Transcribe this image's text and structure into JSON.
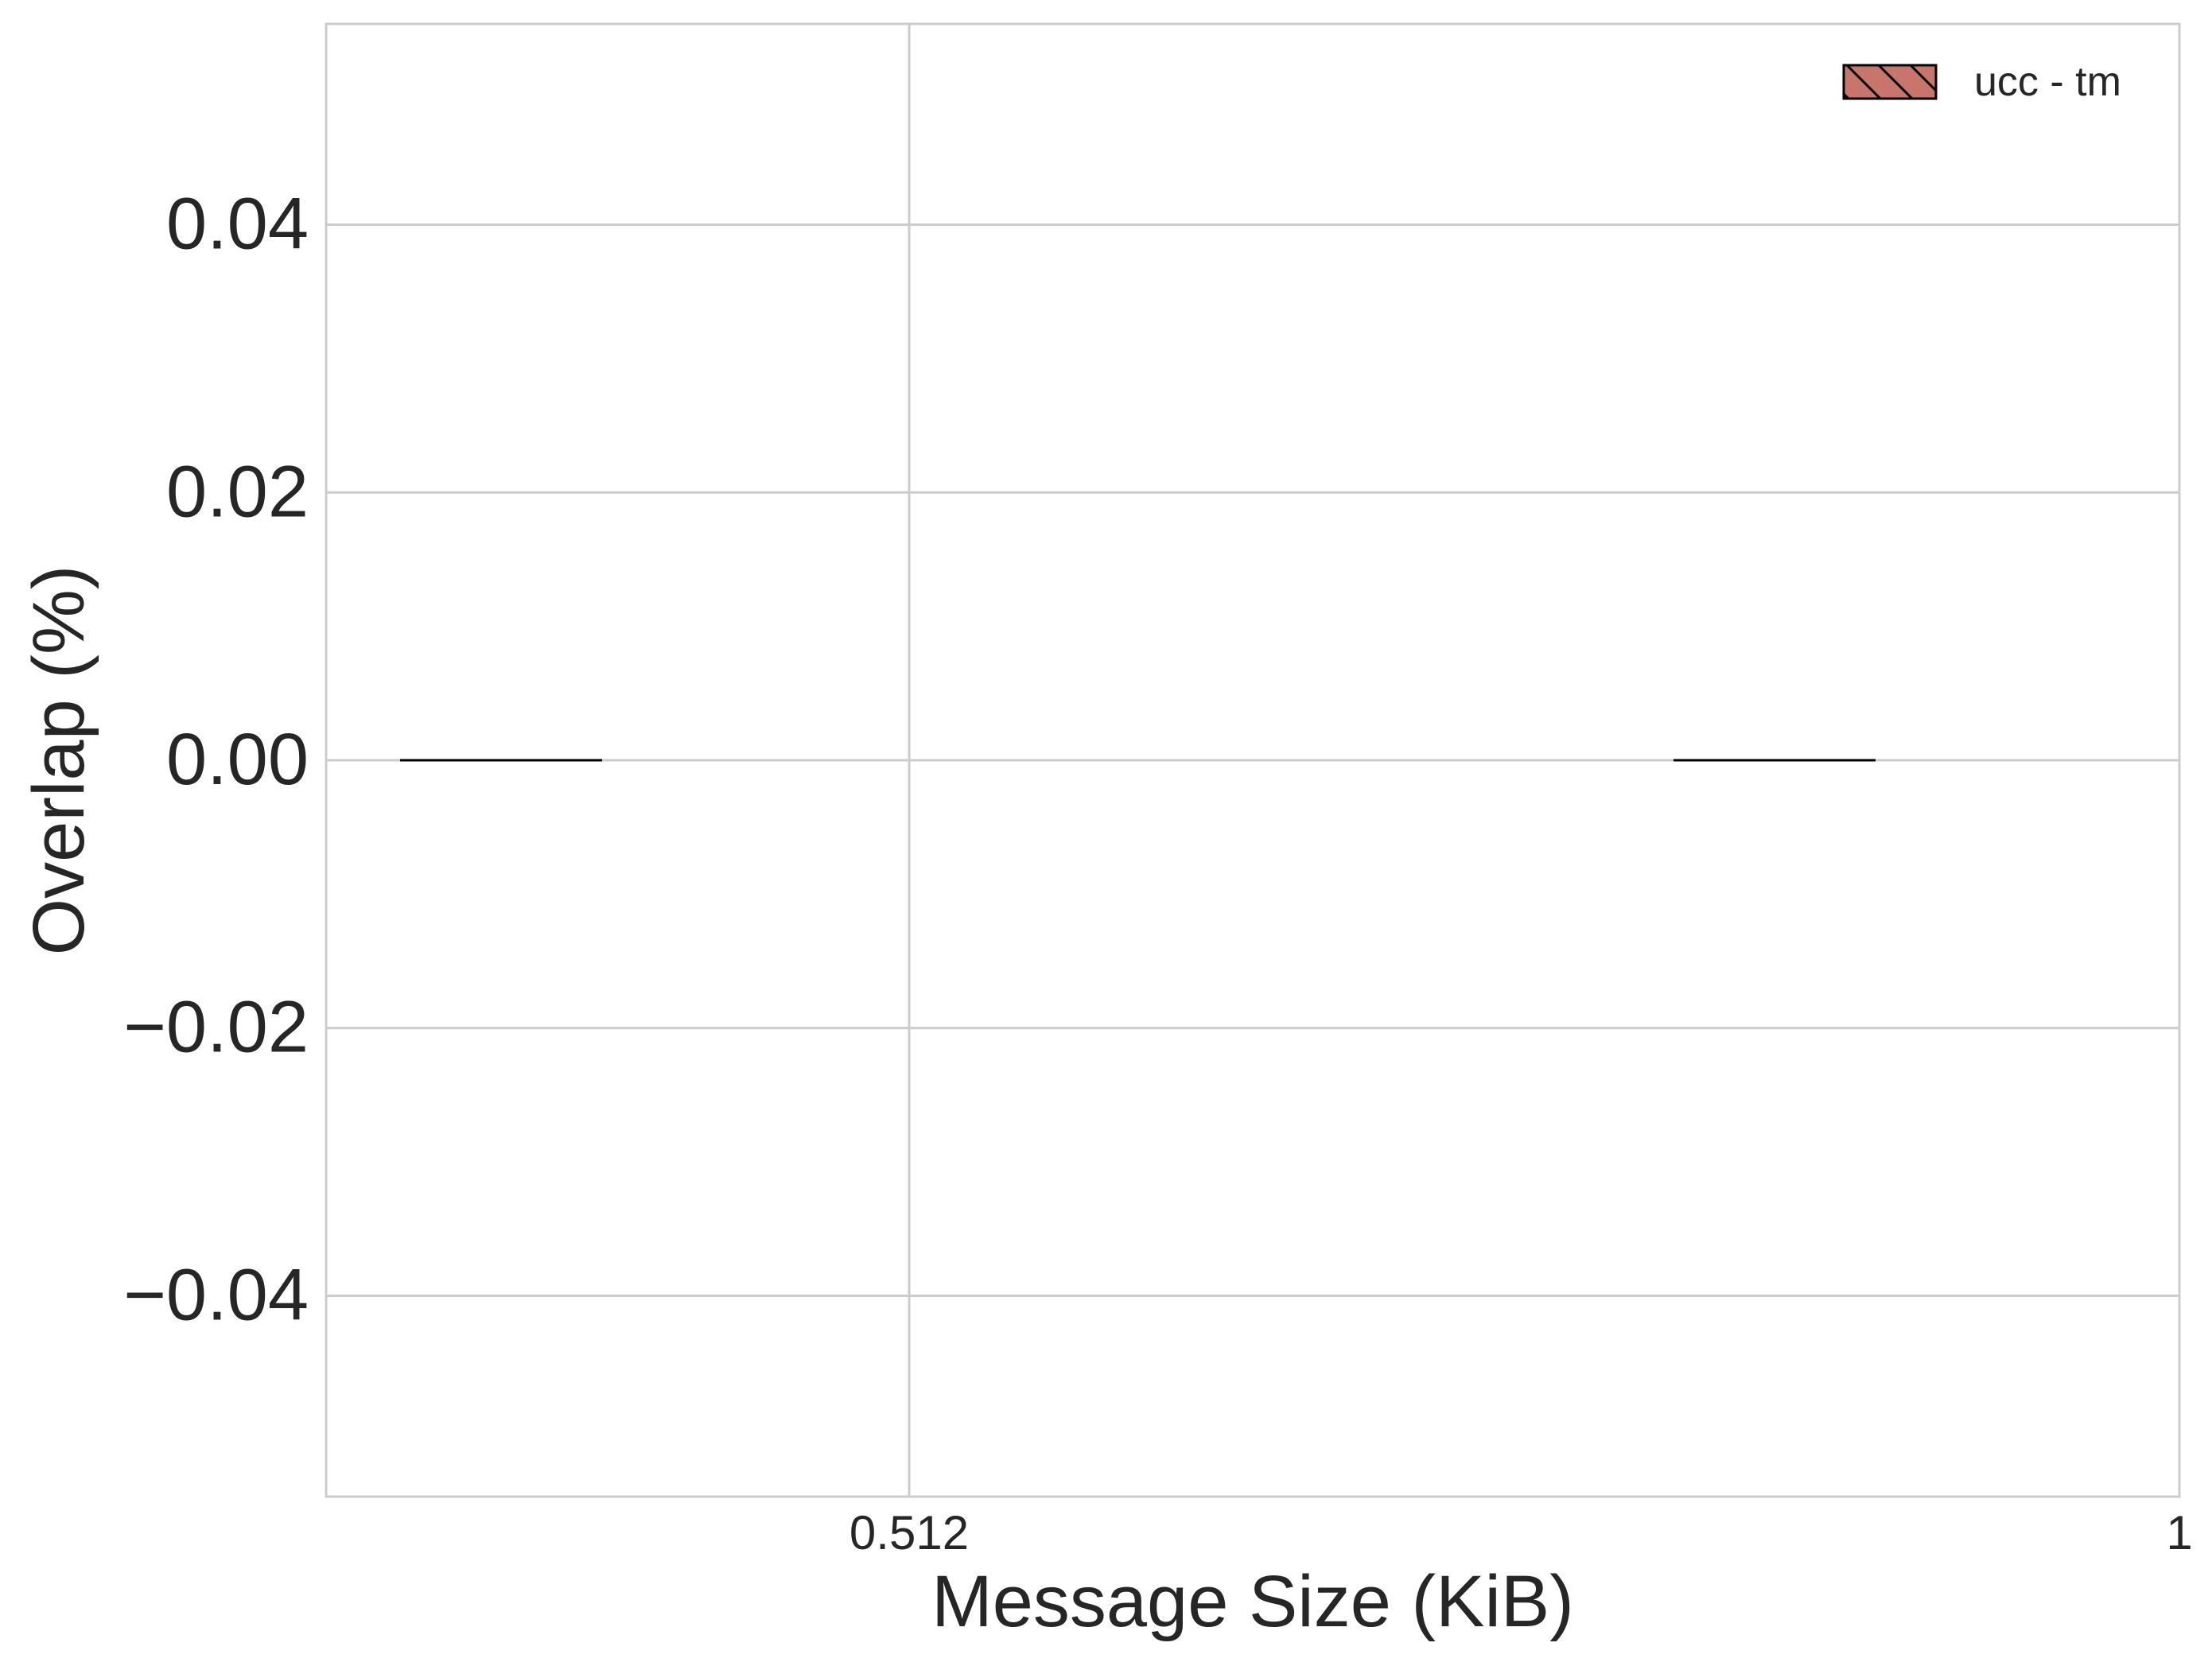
{
  "chart_data": {
    "type": "bar",
    "title": "",
    "xlabel": "Message Size (KiB)",
    "ylabel": "Overlap (%)",
    "x_ticks": [
      "0.512",
      "1"
    ],
    "y_ticks": [
      "0.04",
      "0.02",
      "0.00",
      "−0.02",
      "−0.04"
    ],
    "y_tick_values": [
      0.04,
      0.02,
      0.0,
      -0.02,
      -0.04
    ],
    "ylim": [
      -0.055,
      0.055
    ],
    "grid": true,
    "legend_position": "top-right",
    "series": [
      {
        "name": "ucc - tm",
        "color": "#c8756b",
        "hatch": "diagonal",
        "points": [
          {
            "x_label": "0.512",
            "value": 0.0
          },
          {
            "x_label": "1",
            "value": 0.0
          }
        ]
      }
    ]
  }
}
